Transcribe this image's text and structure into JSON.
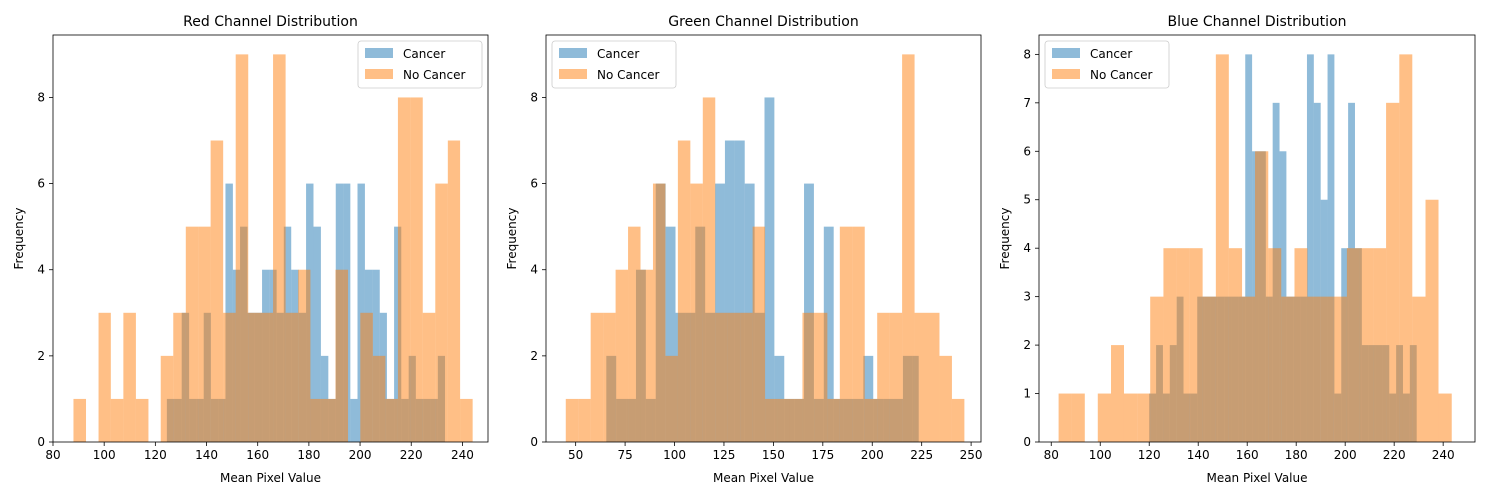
{
  "chart_data": [
    {
      "type": "bar",
      "title": "Red Channel Distribution",
      "xlabel": "Mean Pixel Value",
      "ylabel": "Frequency",
      "xlim": [
        80,
        250
      ],
      "ylim": [
        0,
        9.45
      ],
      "xticks": [
        80,
        100,
        120,
        140,
        160,
        180,
        200,
        220,
        240
      ],
      "yticks": [
        0,
        2,
        4,
        6,
        8
      ],
      "legend_position": "top-right",
      "series": [
        {
          "name": "Cancer",
          "color": "#1f77b4",
          "bins": [
            [
              124.5,
              127.5,
              1
            ],
            [
              127.5,
              130.3,
              1
            ],
            [
              130.3,
              133.2,
              3
            ],
            [
              133.2,
              136,
              1
            ],
            [
              136,
              138.9,
              1
            ],
            [
              138.9,
              141.7,
              3
            ],
            [
              141.7,
              144.6,
              1
            ],
            [
              144.6,
              147.4,
              1
            ],
            [
              147.4,
              150.3,
              6
            ],
            [
              150.3,
              153.1,
              4
            ],
            [
              153.1,
              156,
              5
            ],
            [
              156,
              158.8,
              3
            ],
            [
              158.8,
              161.7,
              3
            ],
            [
              161.7,
              164.5,
              4
            ],
            [
              164.5,
              167.4,
              4
            ],
            [
              167.4,
              170.2,
              3
            ],
            [
              170.2,
              173.1,
              5
            ],
            [
              173.1,
              176,
              4
            ],
            [
              176,
              178.9,
              3
            ],
            [
              178.9,
              181.8,
              6
            ],
            [
              181.8,
              184.7,
              5
            ],
            [
              184.7,
              187.6,
              2
            ],
            [
              187.6,
              190.5,
              1
            ],
            [
              190.5,
              193.4,
              6
            ],
            [
              193.4,
              196.2,
              6
            ],
            [
              196.2,
              199,
              1
            ],
            [
              199,
              201.9,
              6
            ],
            [
              201.9,
              204.8,
              4
            ],
            [
              204.8,
              207.7,
              4
            ],
            [
              207.7,
              210.5,
              3
            ],
            [
              210.5,
              213.3,
              1
            ],
            [
              213.3,
              216.1,
              5
            ],
            [
              216.1,
              219,
              1
            ],
            [
              219,
              221.8,
              2
            ],
            [
              221.8,
              224.7,
              1
            ],
            [
              224.7,
              227.5,
              1
            ],
            [
              227.5,
              230.4,
              1
            ],
            [
              230.4,
              233.2,
              2
            ]
          ]
        },
        {
          "name": "No Cancer",
          "color": "#ff7f0e",
          "bins": [
            [
              88,
              92.9,
              1
            ],
            [
              92.9,
              97.8,
              0
            ],
            [
              97.8,
              102.6,
              3
            ],
            [
              102.6,
              107.5,
              1
            ],
            [
              107.5,
              112.4,
              3
            ],
            [
              112.4,
              117.3,
              1
            ],
            [
              117.3,
              122.1,
              0
            ],
            [
              122.1,
              127,
              2
            ],
            [
              127,
              131.9,
              3
            ],
            [
              131.9,
              136.8,
              5
            ],
            [
              136.8,
              141.6,
              5
            ],
            [
              141.6,
              146.5,
              7
            ],
            [
              146.5,
              151.4,
              3
            ],
            [
              151.4,
              156.3,
              9
            ],
            [
              156.3,
              161.1,
              3
            ],
            [
              161.1,
              166,
              3
            ],
            [
              166,
              170.9,
              9
            ],
            [
              170.9,
              175.8,
              3
            ],
            [
              175.8,
              180.6,
              4
            ],
            [
              180.6,
              185.5,
              1
            ],
            [
              185.5,
              190.4,
              1
            ],
            [
              190.4,
              195.3,
              4
            ],
            [
              195.3,
              200.1,
              0
            ],
            [
              200.1,
              205,
              3
            ],
            [
              205,
              209.9,
              2
            ],
            [
              209.9,
              214.8,
              1
            ],
            [
              214.8,
              219.6,
              8
            ],
            [
              219.6,
              224.5,
              8
            ],
            [
              224.5,
              229.4,
              3
            ],
            [
              229.4,
              234.3,
              6
            ],
            [
              234.3,
              239.1,
              7
            ],
            [
              239.1,
              244,
              1
            ]
          ]
        }
      ]
    },
    {
      "type": "bar",
      "title": "Green Channel Distribution",
      "xlabel": "Mean Pixel Value",
      "ylabel": "Frequency",
      "xlim": [
        35,
        255
      ],
      "ylim": [
        0,
        9.45
      ],
      "xticks": [
        50,
        75,
        100,
        125,
        150,
        175,
        200,
        225,
        250
      ],
      "yticks": [
        0,
        2,
        4,
        6,
        8
      ],
      "legend_position": "top-left",
      "series": [
        {
          "name": "Cancer",
          "color": "#1f77b4",
          "bins": [
            [
              65.5,
              70.5,
              2
            ],
            [
              70.5,
              75.5,
              1
            ],
            [
              75.5,
              80.5,
              1
            ],
            [
              80.5,
              85.5,
              4
            ],
            [
              85.5,
              90.5,
              1
            ],
            [
              90.5,
              95.5,
              6
            ],
            [
              95.5,
              100.5,
              5
            ],
            [
              100.5,
              105.5,
              3
            ],
            [
              105.5,
              110.5,
              3
            ],
            [
              110.5,
              115.5,
              5
            ],
            [
              115.5,
              120.5,
              3
            ],
            [
              120.5,
              125.5,
              6
            ],
            [
              125.5,
              130.5,
              7
            ],
            [
              130.5,
              135.5,
              7
            ],
            [
              135.5,
              140.5,
              6
            ],
            [
              140.5,
              145.5,
              3
            ],
            [
              145.5,
              150.5,
              8
            ],
            [
              150.5,
              155.5,
              2
            ],
            [
              155.5,
              160.5,
              1
            ],
            [
              160.5,
              165.5,
              1
            ],
            [
              165.5,
              170.5,
              6
            ],
            [
              170.5,
              175.5,
              1
            ],
            [
              175.5,
              180.5,
              5
            ],
            [
              180.5,
              185.5,
              1
            ],
            [
              185.5,
              190.5,
              1
            ],
            [
              190.5,
              195.5,
              1
            ],
            [
              195.5,
              200.5,
              2
            ],
            [
              200.5,
              205.5,
              1
            ],
            [
              205.5,
              210.5,
              1
            ],
            [
              210.5,
              215.5,
              1
            ],
            [
              215.5,
              220.5,
              2
            ],
            [
              220.5,
              223.5,
              2
            ]
          ]
        },
        {
          "name": "No Cancer",
          "color": "#ff7f0e",
          "bins": [
            [
              45,
              51.3,
              1
            ],
            [
              51.3,
              57.6,
              1
            ],
            [
              57.6,
              63.9,
              3
            ],
            [
              63.9,
              70.2,
              3
            ],
            [
              70.2,
              76.5,
              4
            ],
            [
              76.5,
              82.8,
              5
            ],
            [
              82.8,
              89.1,
              4
            ],
            [
              89.1,
              95.4,
              6
            ],
            [
              95.4,
              101.7,
              2
            ],
            [
              101.7,
              108,
              7
            ],
            [
              108,
              114.3,
              6
            ],
            [
              114.3,
              120.6,
              8
            ],
            [
              120.6,
              126.9,
              3
            ],
            [
              126.9,
              133.2,
              3
            ],
            [
              133.2,
              139.5,
              3
            ],
            [
              139.5,
              145.8,
              5
            ],
            [
              145.8,
              152.1,
              1
            ],
            [
              152.1,
              158.4,
              1
            ],
            [
              158.4,
              164.7,
              1
            ],
            [
              164.7,
              171,
              3
            ],
            [
              171,
              177.3,
              3
            ],
            [
              177.3,
              183.6,
              1
            ],
            [
              183.6,
              189.9,
              5
            ],
            [
              189.9,
              196.2,
              5
            ],
            [
              196.2,
              202.5,
              1
            ],
            [
              202.5,
              208.8,
              3
            ],
            [
              208.8,
              215.1,
              3
            ],
            [
              215.1,
              221.4,
              9
            ],
            [
              221.4,
              227.7,
              3
            ],
            [
              227.7,
              234,
              3
            ],
            [
              234,
              240.3,
              2
            ],
            [
              240.3,
              246.6,
              1
            ]
          ]
        }
      ]
    },
    {
      "type": "bar",
      "title": "Blue Channel Distribution",
      "xlabel": "Mean Pixel Value",
      "ylabel": "Frequency",
      "xlim": [
        75,
        253
      ],
      "ylim": [
        0,
        8.4
      ],
      "xticks": [
        80,
        100,
        120,
        140,
        160,
        180,
        200,
        220,
        240
      ],
      "yticks": [
        0,
        1,
        2,
        3,
        4,
        5,
        6,
        7,
        8
      ],
      "legend_position": "top-left",
      "series": [
        {
          "name": "Cancer",
          "color": "#1f77b4",
          "bins": [
            [
              120,
              122.8,
              1
            ],
            [
              122.8,
              125.6,
              2
            ],
            [
              125.6,
              128.4,
              1
            ],
            [
              128.4,
              131.2,
              2
            ],
            [
              131.2,
              134,
              3
            ],
            [
              134,
              136.8,
              1
            ],
            [
              136.8,
              139.6,
              1
            ],
            [
              139.6,
              142.4,
              3
            ],
            [
              142.4,
              145.2,
              3
            ],
            [
              145.2,
              148,
              3
            ],
            [
              148,
              150.8,
              3
            ],
            [
              150.8,
              153.6,
              3
            ],
            [
              153.6,
              156.4,
              3
            ],
            [
              156.4,
              159.2,
              3
            ],
            [
              159.2,
              162,
              8
            ],
            [
              162,
              164.8,
              6
            ],
            [
              164.8,
              167.6,
              6
            ],
            [
              167.6,
              170.4,
              3
            ],
            [
              170.4,
              173.2,
              7
            ],
            [
              173.2,
              176,
              6
            ],
            [
              176,
              178.8,
              3
            ],
            [
              178.8,
              181.6,
              3
            ],
            [
              181.6,
              184.4,
              3
            ],
            [
              184.4,
              187.2,
              8
            ],
            [
              187.2,
              190,
              7
            ],
            [
              190,
              192.8,
              5
            ],
            [
              192.8,
              195.6,
              8
            ],
            [
              195.6,
              198.4,
              1
            ],
            [
              198.4,
              201.2,
              4
            ],
            [
              201.2,
              204,
              7
            ],
            [
              204,
              206.8,
              4
            ],
            [
              206.8,
              209.6,
              2
            ],
            [
              209.6,
              212.4,
              2
            ],
            [
              212.4,
              215.2,
              2
            ],
            [
              215.2,
              218,
              2
            ],
            [
              218,
              220.8,
              1
            ],
            [
              220.8,
              223.6,
              2
            ],
            [
              223.6,
              226.4,
              1
            ],
            [
              226.4,
              229.2,
              2
            ]
          ]
        },
        {
          "name": "No Cancer",
          "color": "#ff7f0e",
          "bins": [
            [
              83,
              88.3,
              1
            ],
            [
              88.3,
              93.7,
              1
            ],
            [
              93.7,
              99,
              0
            ],
            [
              99,
              104.4,
              1
            ],
            [
              104.4,
              109.7,
              2
            ],
            [
              109.7,
              115.1,
              1
            ],
            [
              115.1,
              120.4,
              1
            ],
            [
              120.4,
              125.8,
              3
            ],
            [
              125.8,
              131.1,
              4
            ],
            [
              131.1,
              136.5,
              4
            ],
            [
              136.5,
              141.8,
              4
            ],
            [
              141.8,
              147.2,
              3
            ],
            [
              147.2,
              152.5,
              8
            ],
            [
              152.5,
              157.9,
              4
            ],
            [
              157.9,
              163.2,
              3
            ],
            [
              163.2,
              168.6,
              6
            ],
            [
              168.6,
              173.9,
              4
            ],
            [
              173.9,
              179.3,
              3
            ],
            [
              179.3,
              184.6,
              4
            ],
            [
              184.6,
              190,
              3
            ],
            [
              190,
              195.3,
              3
            ],
            [
              195.3,
              200.7,
              3
            ],
            [
              200.7,
              206,
              4
            ],
            [
              206,
              211.4,
              4
            ],
            [
              211.4,
              216.7,
              4
            ],
            [
              216.7,
              222.1,
              7
            ],
            [
              222.1,
              227.4,
              8
            ],
            [
              227.4,
              232.8,
              3
            ],
            [
              232.8,
              238.1,
              5
            ],
            [
              238.1,
              243.5,
              1
            ]
          ]
        }
      ]
    }
  ]
}
